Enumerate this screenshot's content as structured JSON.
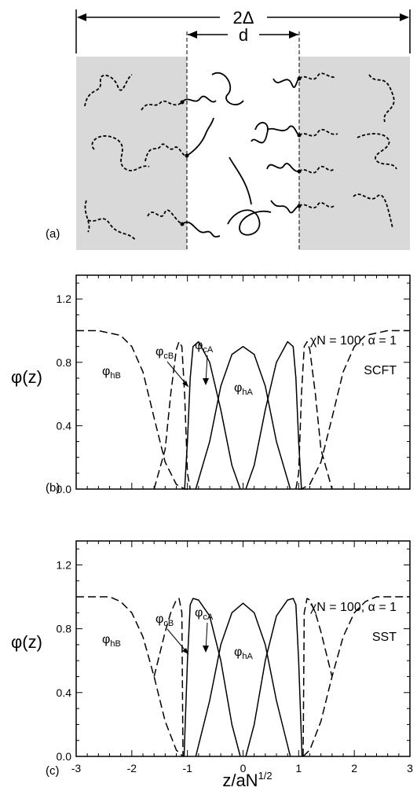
{
  "figure": {
    "panel_a": {
      "label": "(a)",
      "dim_outer": "2Δ",
      "dim_inner": "d"
    }
  },
  "chart_data": [
    {
      "type": "line",
      "panel_label": "(b)",
      "ylabel": "φ(z)",
      "xlabel": "",
      "xlim": [
        -3,
        3
      ],
      "ylim": [
        0.0,
        1.35
      ],
      "yticks": [
        "0.0",
        "0.4",
        "0.8",
        "1.2"
      ],
      "params": "χN = 100,  α = 1",
      "method": "SCFT",
      "annotations": [
        {
          "base": "φ",
          "sub": "hB"
        },
        {
          "base": "φ",
          "sub": "cB"
        },
        {
          "base": "φ",
          "sub": "cA"
        },
        {
          "base": "φ",
          "sub": "hA"
        }
      ],
      "series": [
        {
          "style": "dashed",
          "x": [
            -3,
            -2.6,
            -2.2,
            -2.0,
            -1.8,
            -1.6,
            -1.4,
            -1.2,
            -1.05,
            -1.0
          ],
          "y": [
            1.0,
            1.0,
            0.97,
            0.9,
            0.74,
            0.45,
            0.17,
            0.03,
            0.0,
            0.0
          ]
        },
        {
          "style": "dashed",
          "x": [
            -1.6,
            -1.4,
            -1.3,
            -1.2,
            -1.15,
            -1.1,
            -1.05,
            -1.0,
            -0.95
          ],
          "y": [
            0.0,
            0.25,
            0.6,
            0.88,
            0.93,
            0.9,
            0.6,
            0.1,
            0.0
          ]
        },
        {
          "style": "solid",
          "x": [
            -1.05,
            -1.0,
            -0.95,
            -0.9,
            -0.8,
            -0.6,
            -0.4,
            -0.2,
            -0.05
          ],
          "y": [
            0.0,
            0.3,
            0.7,
            0.9,
            0.93,
            0.8,
            0.5,
            0.15,
            0.0
          ]
        },
        {
          "style": "solid",
          "x": [
            -0.85,
            -0.6,
            -0.4,
            -0.2,
            0.0,
            0.2,
            0.4,
            0.6,
            0.85
          ],
          "y": [
            0.0,
            0.3,
            0.65,
            0.85,
            0.9,
            0.85,
            0.65,
            0.3,
            0.0
          ]
        },
        {
          "style": "solid",
          "x": [
            0.05,
            0.2,
            0.4,
            0.6,
            0.8,
            0.9,
            0.95,
            1.0,
            1.05
          ],
          "y": [
            0.0,
            0.15,
            0.5,
            0.8,
            0.93,
            0.9,
            0.7,
            0.3,
            0.0
          ]
        },
        {
          "style": "dashed",
          "x": [
            0.95,
            1.0,
            1.05,
            1.1,
            1.15,
            1.2,
            1.3,
            1.4,
            1.6
          ],
          "y": [
            0.0,
            0.1,
            0.6,
            0.9,
            0.93,
            0.88,
            0.6,
            0.25,
            0.0
          ]
        },
        {
          "style": "dashed",
          "x": [
            1.0,
            1.05,
            1.2,
            1.4,
            1.6,
            1.8,
            2.0,
            2.2,
            2.6,
            3.0
          ],
          "y": [
            0.0,
            0.0,
            0.03,
            0.17,
            0.45,
            0.74,
            0.9,
            0.97,
            1.0,
            1.0
          ]
        }
      ]
    },
    {
      "type": "line",
      "panel_label": "(c)",
      "ylabel": "φ(z)",
      "xlabel": "z/aN",
      "xlabel_sup": "1/2",
      "xlim": [
        -3,
        3
      ],
      "ylim": [
        0.0,
        1.35
      ],
      "xticks": [
        "-3",
        "-2",
        "-1",
        "0",
        "1",
        "2",
        "3"
      ],
      "yticks": [
        "0.0",
        "0.4",
        "0.8",
        "1.2"
      ],
      "params": "χN = 100,  α = 1",
      "method": "SST",
      "annotations": [
        {
          "base": "φ",
          "sub": "hB"
        },
        {
          "base": "φ",
          "sub": "cB"
        },
        {
          "base": "φ",
          "sub": "cA"
        },
        {
          "base": "φ",
          "sub": "hA"
        }
      ],
      "series": [
        {
          "style": "dashed",
          "x": [
            -3,
            -2.4,
            -2.2,
            -2.0,
            -1.8,
            -1.6,
            -1.4,
            -1.2,
            -1.08
          ],
          "y": [
            1.0,
            1.0,
            0.97,
            0.9,
            0.75,
            0.5,
            0.22,
            0.04,
            0.0
          ]
        },
        {
          "style": "dashed",
          "x": [
            -1.6,
            -1.4,
            -1.3,
            -1.2,
            -1.15,
            -1.1,
            -1.08
          ],
          "y": [
            0.5,
            0.78,
            0.9,
            0.98,
            0.99,
            0.9,
            0.0
          ]
        },
        {
          "style": "solid",
          "x": [
            -1.06,
            -1.0,
            -0.95,
            -0.9,
            -0.8,
            -0.6,
            -0.4,
            -0.2,
            -0.05
          ],
          "y": [
            0.0,
            0.6,
            0.95,
            0.99,
            0.98,
            0.88,
            0.6,
            0.2,
            0.0
          ]
        },
        {
          "style": "solid",
          "x": [
            -0.85,
            -0.6,
            -0.4,
            -0.2,
            0.0,
            0.2,
            0.4,
            0.6,
            0.85
          ],
          "y": [
            0.0,
            0.35,
            0.7,
            0.9,
            0.96,
            0.9,
            0.7,
            0.35,
            0.0
          ]
        },
        {
          "style": "solid",
          "x": [
            0.05,
            0.2,
            0.4,
            0.6,
            0.8,
            0.9,
            0.95,
            1.0,
            1.06
          ],
          "y": [
            0.0,
            0.2,
            0.6,
            0.88,
            0.98,
            0.99,
            0.95,
            0.6,
            0.0
          ]
        },
        {
          "style": "dashed",
          "x": [
            1.08,
            1.1,
            1.15,
            1.2,
            1.3,
            1.4,
            1.6
          ],
          "y": [
            0.0,
            0.9,
            0.99,
            0.98,
            0.9,
            0.78,
            0.5
          ]
        },
        {
          "style": "dashed",
          "x": [
            1.08,
            1.2,
            1.4,
            1.6,
            1.8,
            2.0,
            2.2,
            2.4,
            3.0
          ],
          "y": [
            0.0,
            0.04,
            0.22,
            0.5,
            0.75,
            0.9,
            0.97,
            1.0,
            1.0
          ]
        }
      ]
    }
  ]
}
